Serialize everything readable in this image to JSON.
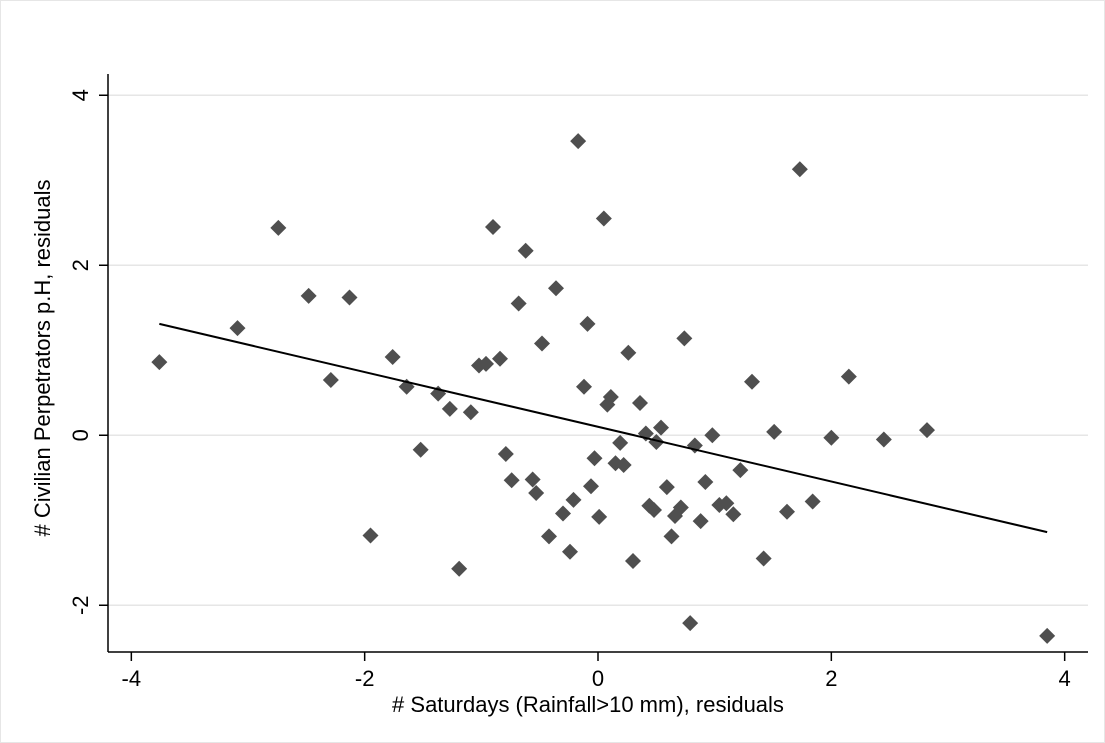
{
  "chart_data": {
    "type": "scatter",
    "xlabel": "# Saturdays (Rainfall>10 mm), residuals",
    "ylabel": "# Civilian Perpetrators p.H, residuals",
    "xlim": [
      -4.2,
      4.2
    ],
    "ylim": [
      -2.55,
      4.25
    ],
    "x_ticks": [
      -4,
      -2,
      0,
      2,
      4
    ],
    "y_ticks": [
      -2,
      0,
      2,
      4
    ],
    "x_tick_labels": [
      "-4",
      "-2",
      "0",
      "2",
      "4"
    ],
    "y_tick_labels": [
      "-2",
      "0",
      "2",
      "4"
    ],
    "grid": "horizontal",
    "colors": {
      "points": "#4f4f4f",
      "fit_line": "#000000",
      "grid": "#e6e6e6"
    },
    "series": [
      {
        "marker": "diamond",
        "points": [
          [
            -3.76,
            0.86
          ],
          [
            -3.09,
            1.26
          ],
          [
            -2.74,
            2.44
          ],
          [
            -2.48,
            1.64
          ],
          [
            -2.29,
            0.65
          ],
          [
            -2.13,
            1.62
          ],
          [
            -1.95,
            -1.18
          ],
          [
            -1.76,
            0.92
          ],
          [
            -1.64,
            0.57
          ],
          [
            -1.52,
            -0.17
          ],
          [
            -1.37,
            0.49
          ],
          [
            -1.27,
            0.31
          ],
          [
            -1.19,
            -1.57
          ],
          [
            -1.09,
            0.27
          ],
          [
            -1.02,
            0.82
          ],
          [
            -0.96,
            0.84
          ],
          [
            -0.9,
            2.45
          ],
          [
            -0.84,
            0.9
          ],
          [
            -0.79,
            -0.22
          ],
          [
            -0.74,
            -0.53
          ],
          [
            -0.68,
            1.55
          ],
          [
            -0.62,
            2.17
          ],
          [
            -0.56,
            -0.52
          ],
          [
            -0.53,
            -0.68
          ],
          [
            -0.48,
            1.08
          ],
          [
            -0.42,
            -1.19
          ],
          [
            -0.36,
            1.73
          ],
          [
            -0.3,
            -0.92
          ],
          [
            -0.24,
            -1.37
          ],
          [
            -0.21,
            -0.76
          ],
          [
            -0.17,
            3.46
          ],
          [
            -0.12,
            0.57
          ],
          [
            -0.09,
            1.31
          ],
          [
            -0.06,
            -0.6
          ],
          [
            -0.03,
            -0.27
          ],
          [
            0.01,
            -0.96
          ],
          [
            0.05,
            2.55
          ],
          [
            0.08,
            0.36
          ],
          [
            0.11,
            0.45
          ],
          [
            0.15,
            -0.33
          ],
          [
            0.19,
            -0.09
          ],
          [
            0.22,
            -0.35
          ],
          [
            0.26,
            0.97
          ],
          [
            0.3,
            -1.48
          ],
          [
            0.36,
            0.38
          ],
          [
            0.41,
            0.02
          ],
          [
            0.44,
            -0.83
          ],
          [
            0.48,
            -0.88
          ],
          [
            0.5,
            -0.08
          ],
          [
            0.54,
            0.09
          ],
          [
            0.59,
            -0.61
          ],
          [
            0.63,
            -1.19
          ],
          [
            0.66,
            -0.95
          ],
          [
            0.71,
            -0.85
          ],
          [
            0.74,
            1.14
          ],
          [
            0.79,
            -2.21
          ],
          [
            0.83,
            -0.12
          ],
          [
            0.88,
            -1.01
          ],
          [
            0.92,
            -0.55
          ],
          [
            0.98,
            0.0
          ],
          [
            1.04,
            -0.82
          ],
          [
            1.1,
            -0.8
          ],
          [
            1.16,
            -0.93
          ],
          [
            1.22,
            -0.41
          ],
          [
            1.32,
            0.63
          ],
          [
            1.42,
            -1.45
          ],
          [
            1.51,
            0.04
          ],
          [
            1.62,
            -0.9
          ],
          [
            1.73,
            3.13
          ],
          [
            1.84,
            -0.78
          ],
          [
            2.0,
            -0.03
          ],
          [
            2.15,
            0.69
          ],
          [
            2.45,
            -0.05
          ],
          [
            2.82,
            0.06
          ],
          [
            3.85,
            -2.36
          ]
        ]
      }
    ],
    "fit_line": {
      "x": [
        -3.76,
        3.85
      ],
      "y": [
        1.31,
        -1.14
      ]
    }
  }
}
